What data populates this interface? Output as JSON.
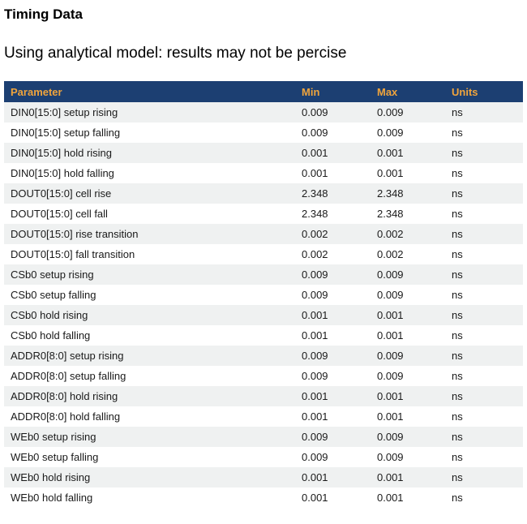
{
  "page": {
    "title": "Timing Data",
    "subtitle": "Using analytical model: results may not be percise"
  },
  "table": {
    "columns": [
      "Parameter",
      "Min",
      "Max",
      "Units"
    ],
    "rows": [
      {
        "parameter": "DIN0[15:0] setup rising",
        "min": "0.009",
        "max": "0.009",
        "units": "ns"
      },
      {
        "parameter": "DIN0[15:0] setup falling",
        "min": "0.009",
        "max": "0.009",
        "units": "ns"
      },
      {
        "parameter": "DIN0[15:0] hold rising",
        "min": "0.001",
        "max": "0.001",
        "units": "ns"
      },
      {
        "parameter": "DIN0[15:0] hold falling",
        "min": "0.001",
        "max": "0.001",
        "units": "ns"
      },
      {
        "parameter": "DOUT0[15:0] cell rise",
        "min": "2.348",
        "max": "2.348",
        "units": "ns"
      },
      {
        "parameter": "DOUT0[15:0] cell fall",
        "min": "2.348",
        "max": "2.348",
        "units": "ns"
      },
      {
        "parameter": "DOUT0[15:0] rise transition",
        "min": "0.002",
        "max": "0.002",
        "units": "ns"
      },
      {
        "parameter": "DOUT0[15:0] fall transition",
        "min": "0.002",
        "max": "0.002",
        "units": "ns"
      },
      {
        "parameter": "CSb0 setup rising",
        "min": "0.009",
        "max": "0.009",
        "units": "ns"
      },
      {
        "parameter": "CSb0 setup falling",
        "min": "0.009",
        "max": "0.009",
        "units": "ns"
      },
      {
        "parameter": "CSb0 hold rising",
        "min": "0.001",
        "max": "0.001",
        "units": "ns"
      },
      {
        "parameter": "CSb0 hold falling",
        "min": "0.001",
        "max": "0.001",
        "units": "ns"
      },
      {
        "parameter": "ADDR0[8:0] setup rising",
        "min": "0.009",
        "max": "0.009",
        "units": "ns"
      },
      {
        "parameter": "ADDR0[8:0] setup falling",
        "min": "0.009",
        "max": "0.009",
        "units": "ns"
      },
      {
        "parameter": "ADDR0[8:0] hold rising",
        "min": "0.001",
        "max": "0.001",
        "units": "ns"
      },
      {
        "parameter": "ADDR0[8:0] hold falling",
        "min": "0.001",
        "max": "0.001",
        "units": "ns"
      },
      {
        "parameter": "WEb0 setup rising",
        "min": "0.009",
        "max": "0.009",
        "units": "ns"
      },
      {
        "parameter": "WEb0 setup falling",
        "min": "0.009",
        "max": "0.009",
        "units": "ns"
      },
      {
        "parameter": "WEb0 hold rising",
        "min": "0.001",
        "max": "0.001",
        "units": "ns"
      },
      {
        "parameter": "WEb0 hold falling",
        "min": "0.001",
        "max": "0.001",
        "units": "ns"
      }
    ]
  },
  "colors": {
    "header_bg": "#1c3f72",
    "header_text": "#f0a43c",
    "row_stripe_bg": "#eff1f1",
    "body_text": "#1a1a1a"
  }
}
